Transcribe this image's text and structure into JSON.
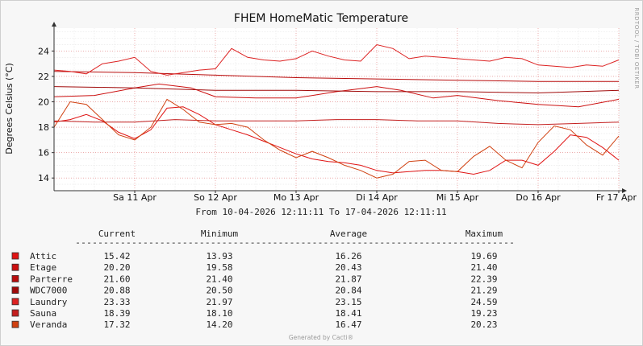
{
  "chart_data": {
    "type": "line",
    "title": "FHEM HomeMatic Temperature",
    "ylabel": "Degrees Celsius (°C)",
    "ylim": [
      13,
      25.8
    ],
    "yticks": [
      14,
      16,
      18,
      20,
      22,
      24
    ],
    "xlim": [
      0,
      7
    ],
    "xticks": [
      {
        "label": "Sa 11 Apr",
        "value": 1.0
      },
      {
        "label": "So 12 Apr",
        "value": 2.0
      },
      {
        "label": "Mo 13 Apr",
        "value": 3.0
      },
      {
        "label": "Di 14 Apr",
        "value": 4.0
      },
      {
        "label": "Mi 15 Apr",
        "value": 5.0
      },
      {
        "label": "Do 16 Apr",
        "value": 6.0
      },
      {
        "label": "Fr 17 Apr",
        "value": 7.0
      }
    ],
    "grid": true,
    "range_text": "From 10-04-2026 12:11:11 To 17-04-2026 12:11:11",
    "side_text": "RRDTOOL / TOBI OETIKER",
    "footer": "Generated by Cacti®",
    "legend_headers": [
      "Current",
      "Minimum",
      "Average",
      "Maximum"
    ],
    "series": [
      {
        "name": "Attic",
        "color": "#e01414",
        "current": "15.42",
        "minimum": "13.93",
        "average": "16.26",
        "maximum": "19.69",
        "x": [
          0,
          0.2,
          0.4,
          0.6,
          0.8,
          1.0,
          1.2,
          1.4,
          1.6,
          1.8,
          2.0,
          2.2,
          2.4,
          2.6,
          2.8,
          3.0,
          3.2,
          3.4,
          3.6,
          3.8,
          4.0,
          4.2,
          4.4,
          4.6,
          4.8,
          5.0,
          5.2,
          5.4,
          5.6,
          5.8,
          6.0,
          6.2,
          6.4,
          6.6,
          6.8,
          7.0
        ],
        "y": [
          18.4,
          18.6,
          19.0,
          18.5,
          17.6,
          17.1,
          17.8,
          19.5,
          19.6,
          19.0,
          18.2,
          17.8,
          17.4,
          16.9,
          16.4,
          15.9,
          15.5,
          15.3,
          15.2,
          15.0,
          14.6,
          14.4,
          14.5,
          14.6,
          14.6,
          14.5,
          14.3,
          14.6,
          15.4,
          15.4,
          15.0,
          16.1,
          17.4,
          17.2,
          16.4,
          15.4
        ]
      },
      {
        "name": "Etage",
        "color": "#cc1010",
        "current": "20.20",
        "minimum": "19.58",
        "average": "20.43",
        "maximum": "21.40",
        "x": [
          0,
          0.5,
          1.0,
          1.3,
          1.7,
          2.0,
          2.5,
          3.0,
          3.5,
          4.0,
          4.3,
          4.7,
          5.0,
          5.5,
          6.0,
          6.5,
          7.0
        ],
        "y": [
          20.4,
          20.5,
          21.1,
          21.4,
          21.1,
          20.4,
          20.3,
          20.3,
          20.8,
          21.2,
          20.9,
          20.3,
          20.5,
          20.1,
          19.8,
          19.6,
          20.2
        ]
      },
      {
        "name": "Parterre",
        "color": "#b80c0c",
        "current": "21.60",
        "minimum": "21.40",
        "average": "21.87",
        "maximum": "22.39",
        "x": [
          0,
          1.0,
          2.0,
          3.0,
          4.0,
          5.0,
          6.0,
          7.0
        ],
        "y": [
          22.4,
          22.3,
          22.1,
          21.9,
          21.8,
          21.7,
          21.6,
          21.6
        ]
      },
      {
        "name": "WDC7000",
        "color": "#a00a0a",
        "current": "20.88",
        "minimum": "20.50",
        "average": "20.84",
        "maximum": "21.29",
        "x": [
          0,
          1.0,
          2.0,
          3.0,
          4.0,
          5.0,
          6.0,
          7.0
        ],
        "y": [
          21.2,
          21.1,
          20.9,
          20.9,
          20.8,
          20.8,
          20.7,
          20.9
        ]
      },
      {
        "name": "Laundry",
        "color": "#dd2222",
        "current": "23.33",
        "minimum": "21.97",
        "average": "23.15",
        "maximum": "24.59",
        "x": [
          0,
          0.2,
          0.4,
          0.6,
          0.8,
          1.0,
          1.2,
          1.4,
          1.6,
          1.8,
          2.0,
          2.2,
          2.4,
          2.6,
          2.8,
          3.0,
          3.2,
          3.4,
          3.6,
          3.8,
          4.0,
          4.2,
          4.4,
          4.6,
          4.8,
          5.0,
          5.2,
          5.4,
          5.6,
          5.8,
          6.0,
          6.2,
          6.4,
          6.6,
          6.8,
          7.0
        ],
        "y": [
          22.5,
          22.4,
          22.2,
          23.0,
          23.2,
          23.5,
          22.4,
          22.1,
          22.3,
          22.5,
          22.6,
          24.2,
          23.5,
          23.3,
          23.2,
          23.4,
          24.0,
          23.6,
          23.3,
          23.2,
          24.5,
          24.2,
          23.4,
          23.6,
          23.5,
          23.4,
          23.3,
          23.2,
          23.5,
          23.4,
          22.9,
          22.8,
          22.7,
          22.9,
          22.8,
          23.3
        ]
      },
      {
        "name": "Sauna",
        "color": "#c41e1e",
        "current": "18.39",
        "minimum": "18.10",
        "average": "18.41",
        "maximum": "19.23",
        "x": [
          0,
          0.5,
          1.0,
          1.5,
          2.0,
          2.5,
          3.0,
          3.5,
          4.0,
          4.5,
          5.0,
          5.5,
          6.0,
          6.5,
          7.0
        ],
        "y": [
          18.5,
          18.4,
          18.4,
          18.6,
          18.5,
          18.5,
          18.5,
          18.6,
          18.6,
          18.5,
          18.5,
          18.3,
          18.2,
          18.3,
          18.4
        ]
      },
      {
        "name": "Veranda",
        "color": "#d04010",
        "current": "17.32",
        "minimum": "14.20",
        "average": "16.47",
        "maximum": "20.23",
        "x": [
          0,
          0.2,
          0.4,
          0.6,
          0.8,
          1.0,
          1.2,
          1.4,
          1.6,
          1.8,
          2.0,
          2.2,
          2.4,
          2.6,
          2.8,
          3.0,
          3.2,
          3.4,
          3.6,
          3.8,
          4.0,
          4.2,
          4.4,
          4.6,
          4.8,
          5.0,
          5.2,
          5.4,
          5.6,
          5.8,
          6.0,
          6.2,
          6.4,
          6.6,
          6.8,
          7.0
        ],
        "y": [
          18.0,
          20.0,
          19.8,
          18.6,
          17.4,
          17.0,
          18.0,
          20.2,
          19.4,
          18.4,
          18.2,
          18.3,
          18.0,
          17.0,
          16.2,
          15.6,
          16.1,
          15.6,
          15.0,
          14.6,
          14.0,
          14.3,
          15.3,
          15.4,
          14.6,
          14.5,
          15.7,
          16.5,
          15.4,
          14.8,
          16.8,
          18.1,
          17.8,
          16.6,
          15.8,
          17.3
        ]
      }
    ]
  }
}
